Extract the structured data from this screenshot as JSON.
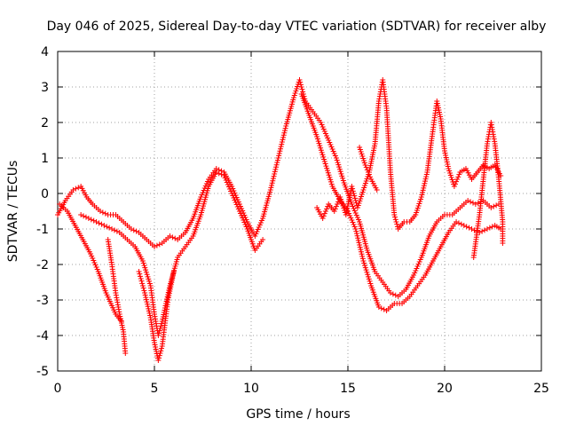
{
  "chart_data": {
    "type": "scatter",
    "title": "Day 046 of 2025, Sidereal Day-to-day VTEC variation (SDTVAR) for receiver alby",
    "xlabel": "GPS time / hours",
    "ylabel": "SDTVAR / TECUs",
    "xlim": [
      0,
      25
    ],
    "ylim": [
      -5,
      4
    ],
    "xticks": [
      "0",
      "5",
      "10",
      "15",
      "20",
      "25"
    ],
    "yticks": [
      "-5",
      "-4",
      "-3",
      "-2",
      "-1",
      "0",
      "1",
      "2",
      "3",
      "4"
    ],
    "grid": true,
    "marker": "plus",
    "color": "#ff0000",
    "series": [
      {
        "name": "trace-1",
        "points": [
          [
            0.0,
            -0.6
          ],
          [
            0.4,
            -0.2
          ],
          [
            0.8,
            0.1
          ],
          [
            1.2,
            0.2
          ],
          [
            1.5,
            -0.1
          ],
          [
            1.8,
            -0.3
          ],
          [
            2.2,
            -0.5
          ],
          [
            2.6,
            -0.6
          ],
          [
            3.0,
            -0.6
          ],
          [
            3.4,
            -0.8
          ],
          [
            3.8,
            -1.0
          ],
          [
            4.2,
            -1.1
          ],
          [
            4.6,
            -1.3
          ],
          [
            5.0,
            -1.5
          ],
          [
            5.4,
            -1.4
          ],
          [
            5.8,
            -1.2
          ],
          [
            6.2,
            -1.3
          ],
          [
            6.6,
            -1.1
          ],
          [
            7.0,
            -0.7
          ],
          [
            7.4,
            -0.1
          ],
          [
            7.8,
            0.4
          ],
          [
            8.2,
            0.7
          ],
          [
            8.6,
            0.6
          ],
          [
            9.0,
            0.2
          ],
          [
            9.4,
            -0.3
          ],
          [
            9.8,
            -0.8
          ],
          [
            10.2,
            -1.2
          ],
          [
            10.6,
            -0.7
          ],
          [
            11.0,
            0.1
          ],
          [
            11.4,
            1.0
          ],
          [
            11.8,
            1.9
          ],
          [
            12.2,
            2.7
          ],
          [
            12.5,
            3.2
          ],
          [
            12.8,
            2.6
          ],
          [
            13.2,
            2.3
          ],
          [
            13.6,
            2.0
          ],
          [
            14.0,
            1.5
          ],
          [
            14.4,
            1.0
          ],
          [
            14.8,
            0.3
          ],
          [
            15.2,
            -0.3
          ],
          [
            15.6,
            -0.8
          ],
          [
            16.0,
            -1.6
          ],
          [
            16.4,
            -2.2
          ],
          [
            16.8,
            -2.5
          ],
          [
            17.2,
            -2.8
          ],
          [
            17.6,
            -2.9
          ],
          [
            18.0,
            -2.7
          ],
          [
            18.4,
            -2.3
          ],
          [
            18.8,
            -1.8
          ],
          [
            19.2,
            -1.2
          ],
          [
            19.6,
            -0.8
          ],
          [
            20.0,
            -0.6
          ],
          [
            20.4,
            -0.6
          ],
          [
            20.8,
            -0.4
          ],
          [
            21.2,
            -0.2
          ],
          [
            21.6,
            -0.3
          ],
          [
            22.0,
            -0.2
          ],
          [
            22.4,
            -0.4
          ],
          [
            22.8,
            -0.3
          ]
        ]
      },
      {
        "name": "trace-2",
        "points": [
          [
            0.1,
            -0.3
          ],
          [
            0.5,
            -0.5
          ],
          [
            0.9,
            -0.9
          ],
          [
            1.3,
            -1.3
          ],
          [
            1.7,
            -1.7
          ],
          [
            2.1,
            -2.2
          ],
          [
            2.5,
            -2.8
          ],
          [
            3.0,
            -3.4
          ],
          [
            3.3,
            -3.6
          ]
        ]
      },
      {
        "name": "trace-3",
        "points": [
          [
            1.2,
            -0.6
          ],
          [
            1.6,
            -0.7
          ],
          [
            2.0,
            -0.8
          ],
          [
            2.4,
            -0.9
          ],
          [
            2.8,
            -1.0
          ],
          [
            3.2,
            -1.1
          ],
          [
            3.6,
            -1.3
          ],
          [
            4.0,
            -1.5
          ],
          [
            4.4,
            -1.9
          ],
          [
            4.8,
            -2.6
          ],
          [
            5.0,
            -3.4
          ],
          [
            5.2,
            -4.0
          ],
          [
            5.4,
            -3.6
          ],
          [
            5.8,
            -2.6
          ],
          [
            6.2,
            -1.8
          ],
          [
            6.6,
            -1.5
          ],
          [
            7.0,
            -1.2
          ],
          [
            7.4,
            -0.6
          ],
          [
            7.8,
            0.2
          ],
          [
            8.2,
            0.6
          ],
          [
            8.6,
            0.5
          ],
          [
            9.0,
            0.0
          ],
          [
            9.4,
            -0.5
          ],
          [
            9.8,
            -1.0
          ],
          [
            10.2,
            -1.6
          ],
          [
            10.6,
            -1.3
          ]
        ]
      },
      {
        "name": "trace-4",
        "points": [
          [
            2.6,
            -1.3
          ],
          [
            2.8,
            -2.0
          ],
          [
            3.0,
            -2.8
          ],
          [
            3.2,
            -3.4
          ],
          [
            3.4,
            -3.9
          ],
          [
            3.5,
            -4.5
          ]
        ]
      },
      {
        "name": "trace-5",
        "points": [
          [
            4.2,
            -2.2
          ],
          [
            4.5,
            -2.8
          ],
          [
            4.8,
            -3.5
          ],
          [
            5.0,
            -4.2
          ],
          [
            5.2,
            -4.7
          ],
          [
            5.4,
            -4.3
          ],
          [
            5.7,
            -3.0
          ],
          [
            6.0,
            -2.2
          ]
        ]
      },
      {
        "name": "trace-6",
        "points": [
          [
            12.6,
            2.8
          ],
          [
            13.0,
            2.2
          ],
          [
            13.4,
            1.6
          ],
          [
            13.8,
            0.9
          ],
          [
            14.2,
            0.2
          ],
          [
            14.6,
            -0.2
          ],
          [
            15.0,
            -0.5
          ],
          [
            15.4,
            -1.0
          ],
          [
            15.8,
            -1.9
          ],
          [
            16.2,
            -2.6
          ],
          [
            16.6,
            -3.2
          ],
          [
            17.0,
            -3.3
          ],
          [
            17.4,
            -3.1
          ],
          [
            17.8,
            -3.1
          ],
          [
            18.2,
            -2.9
          ],
          [
            18.6,
            -2.6
          ],
          [
            19.0,
            -2.3
          ],
          [
            19.4,
            -1.9
          ],
          [
            19.8,
            -1.5
          ],
          [
            20.2,
            -1.1
          ],
          [
            20.6,
            -0.8
          ],
          [
            21.0,
            -0.9
          ],
          [
            21.4,
            -1.0
          ],
          [
            21.8,
            -1.1
          ],
          [
            22.2,
            -1.0
          ],
          [
            22.6,
            -0.9
          ],
          [
            22.9,
            -1.0
          ]
        ]
      },
      {
        "name": "trace-7",
        "points": [
          [
            13.4,
            -0.4
          ],
          [
            13.7,
            -0.7
          ],
          [
            14.0,
            -0.3
          ],
          [
            14.3,
            -0.5
          ],
          [
            14.6,
            -0.1
          ],
          [
            14.9,
            -0.6
          ],
          [
            15.2,
            0.2
          ],
          [
            15.5,
            -0.4
          ],
          [
            15.8,
            0.1
          ],
          [
            16.1,
            0.6
          ],
          [
            16.4,
            1.4
          ],
          [
            16.6,
            2.6
          ],
          [
            16.8,
            3.2
          ],
          [
            17.0,
            2.4
          ],
          [
            17.2,
            0.6
          ],
          [
            17.4,
            -0.6
          ],
          [
            17.6,
            -1.0
          ],
          [
            17.9,
            -0.8
          ],
          [
            18.2,
            -0.8
          ],
          [
            18.5,
            -0.6
          ],
          [
            18.8,
            -0.1
          ],
          [
            19.1,
            0.6
          ],
          [
            19.4,
            1.8
          ],
          [
            19.6,
            2.6
          ],
          [
            19.8,
            2.1
          ],
          [
            20.0,
            1.2
          ],
          [
            20.2,
            0.7
          ],
          [
            20.5,
            0.2
          ],
          [
            20.8,
            0.6
          ],
          [
            21.1,
            0.7
          ],
          [
            21.4,
            0.4
          ],
          [
            21.7,
            0.6
          ],
          [
            22.0,
            0.8
          ],
          [
            22.3,
            0.7
          ],
          [
            22.6,
            0.8
          ],
          [
            22.9,
            0.5
          ]
        ]
      },
      {
        "name": "trace-8",
        "points": [
          [
            15.6,
            1.3
          ],
          [
            15.9,
            0.8
          ],
          [
            16.2,
            0.4
          ],
          [
            16.5,
            0.1
          ]
        ]
      },
      {
        "name": "trace-9",
        "points": [
          [
            21.5,
            -1.8
          ],
          [
            21.8,
            -0.6
          ],
          [
            22.0,
            0.4
          ],
          [
            22.2,
            1.4
          ],
          [
            22.4,
            2.0
          ],
          [
            22.6,
            1.4
          ],
          [
            22.8,
            0.4
          ],
          [
            23.0,
            -0.8
          ],
          [
            23.0,
            -1.4
          ]
        ]
      }
    ]
  }
}
